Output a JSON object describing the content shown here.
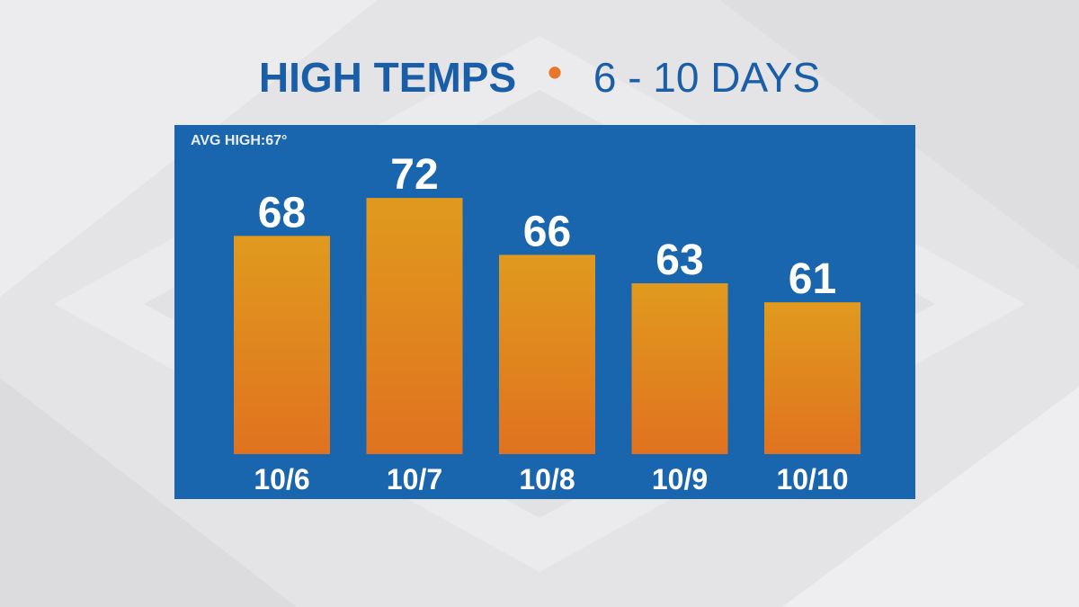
{
  "colors": {
    "panel": "#1a66ae",
    "title": "#1b5ea8",
    "separator": "#e8762b",
    "bar_top": "#e09a1e",
    "bar_bottom": "#e0721f",
    "label_text": "#ffffff"
  },
  "title": {
    "main": "HIGH TEMPS",
    "separator": "•",
    "sub": "6 - 10 DAYS"
  },
  "avg_label": "AVG HIGH:67°",
  "chart_data": {
    "type": "bar",
    "categories": [
      "10/6",
      "10/7",
      "10/8",
      "10/9",
      "10/10"
    ],
    "values": [
      68,
      72,
      66,
      63,
      61
    ],
    "data_labels": [
      "68",
      "72",
      "66",
      "63",
      "61"
    ],
    "ylim": [
      45,
      74
    ],
    "grid": false
  }
}
